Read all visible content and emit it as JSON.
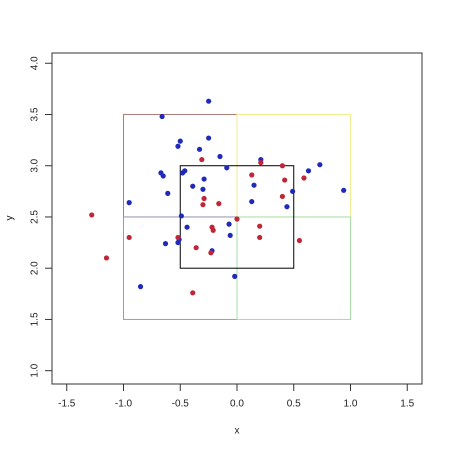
{
  "chart_data": {
    "type": "scatter",
    "xlabel": "x",
    "ylabel": "y",
    "xlim": [
      -1.63,
      1.63
    ],
    "ylim": [
      0.87,
      4.1
    ],
    "xticks": [
      -1.5,
      {
        "value": -1,
        "label": "-1.0"
      },
      -0.5,
      {
        "value": 0,
        "label": "0.0"
      },
      0.5,
      {
        "value": 1,
        "label": "1.0"
      },
      1.5
    ],
    "yticks": [
      {
        "value": 1,
        "label": "1.0"
      },
      1.5,
      {
        "value": 2,
        "label": "2.0"
      },
      2.5,
      {
        "value": 3,
        "label": "3.0"
      },
      3.5,
      {
        "value": 4,
        "label": "4.0"
      }
    ],
    "rects": [
      {
        "x0": -1,
        "x1": 0,
        "y0": 2.5,
        "y1": 3.5,
        "color": "#b07a7a"
      },
      {
        "x0": 0,
        "x1": 1,
        "y0": 2.5,
        "y1": 3.5,
        "color": "#eeee90"
      },
      {
        "x0": -1,
        "x1": 0,
        "y0": 1.5,
        "y1": 2.5,
        "color": "#9a9ab8"
      },
      {
        "x0": 0,
        "x1": 1,
        "y0": 1.5,
        "y1": 2.5,
        "color": "#a8dca8"
      },
      {
        "x0": -0.5,
        "x1": 0.5,
        "y0": 2,
        "y1": 3,
        "color": "#000000"
      }
    ],
    "series": [
      {
        "color": "#1f2bb8",
        "x": [
          -0.25,
          -0.66,
          -0.5,
          -0.52,
          -0.25,
          -0.33,
          -0.15,
          -0.67,
          -0.65,
          -0.46,
          -0.48,
          -0.09,
          0.21,
          -0.29,
          -0.39,
          -0.61,
          -0.95,
          -0.3,
          0.15,
          0.63,
          0.73,
          0.94,
          0.49,
          0.44,
          0.13,
          -0.49,
          -0.44,
          -0.07,
          -0.06,
          -0.63,
          -0.51,
          -0.52,
          -0.22,
          -0.02,
          -0.85
        ],
        "y": [
          3.63,
          3.48,
          3.24,
          3.19,
          3.27,
          3.16,
          3.09,
          2.93,
          2.9,
          2.95,
          2.93,
          2.98,
          3.06,
          2.87,
          2.8,
          2.73,
          2.64,
          2.77,
          2.81,
          2.95,
          3.01,
          2.76,
          2.75,
          2.6,
          2.65,
          2.51,
          2.4,
          2.43,
          2.32,
          2.24,
          2.28,
          2.25,
          2.17,
          1.92,
          1.82
        ]
      },
      {
        "color": "#c02638",
        "x": [
          -1.28,
          -1.15,
          -0.95,
          -0.31,
          0.13,
          0.21,
          0.4,
          0.59,
          0.42,
          0.4,
          -0.29,
          -0.3,
          -0.16,
          0,
          -0.22,
          -0.21,
          0.2,
          0.2,
          0.55,
          -0.52,
          -0.36,
          -0.23,
          -0.39
        ],
        "y": [
          2.52,
          2.1,
          2.3,
          3.06,
          2.91,
          3.03,
          3,
          2.88,
          2.86,
          2.7,
          2.68,
          2.62,
          2.63,
          2.48,
          2.4,
          2.37,
          2.41,
          2.3,
          2.27,
          2.3,
          2.2,
          2.15,
          1.76
        ]
      }
    ]
  }
}
